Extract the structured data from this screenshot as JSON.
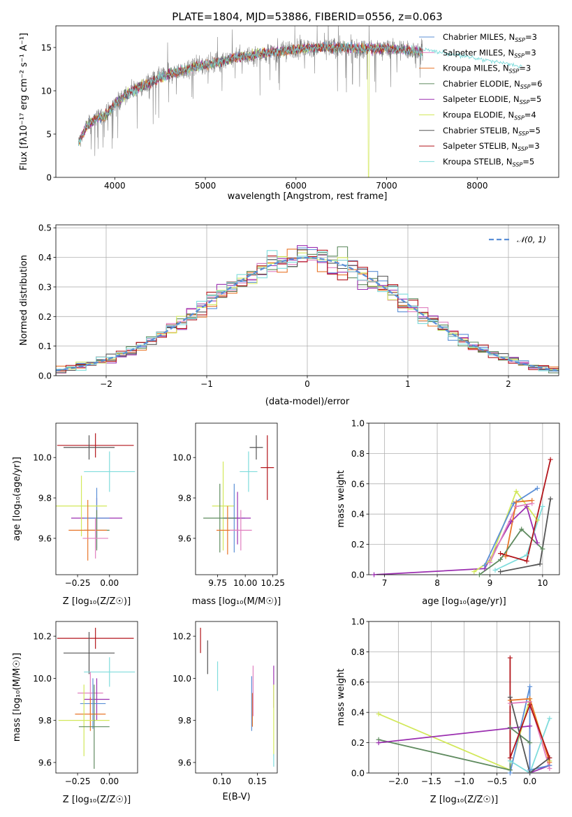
{
  "colors": {
    "Chabrier MILES": "#5B8FD6",
    "Salpeter MILES": "#E07FBF",
    "Kroupa MILES": "#E8762A",
    "Chabrier ELODIE": "#5E8A5E",
    "Salpeter ELODIE": "#9B2FB0",
    "Kroupa ELODIE": "#D2E85A",
    "Chabrier STELIB": "#555555",
    "Salpeter STELIB": "#B3151B",
    "Kroupa STELIB": "#7FDCDC"
  },
  "chart_data": [
    {
      "id": "spectrum",
      "type": "line",
      "title": "PLATE=1804, MJD=53886, FIBERID=0556, z=0.063",
      "xlabel": "wavelength [Angstrom, rest frame]",
      "ylabel": "Flux [fλ10⁻¹⁷ erg cm⁻² s⁻¹ A⁻¹]",
      "xlim": [
        3350,
        8900
      ],
      "ylim": [
        0,
        17.5
      ],
      "xticks": [
        4000,
        5000,
        6000,
        7000,
        8000
      ],
      "yticks": [
        0,
        5,
        10,
        15
      ],
      "legend_placement": "right",
      "legend": [
        {
          "label": "Chabrier MILES, N",
          "sub": "SSP",
          "tail": "=3",
          "color": "#5B8FD6"
        },
        {
          "label": "Salpeter MILES, N",
          "sub": "SSP",
          "tail": "=3",
          "color": "#E07FBF"
        },
        {
          "label": "Kroupa MILES, N",
          "sub": "SSP",
          "tail": "=3",
          "color": "#E8762A"
        },
        {
          "label": "Chabrier ELODIE, N",
          "sub": "SSP",
          "tail": "=6",
          "color": "#5E8A5E"
        },
        {
          "label": "Salpeter ELODIE, N",
          "sub": "SSP",
          "tail": "=5",
          "color": "#9B2FB0"
        },
        {
          "label": "Kroupa ELODIE, N",
          "sub": "SSP",
          "tail": "=4",
          "color": "#D2E85A"
        },
        {
          "label": "Chabrier STELIB, N",
          "sub": "SSP",
          "tail": "=5",
          "color": "#555555"
        },
        {
          "label": "Salpeter STELIB, N",
          "sub": "SSP",
          "tail": "=3",
          "color": "#B3151B"
        },
        {
          "label": "Kroupa STELIB, N",
          "sub": "SSP",
          "tail": "=5",
          "color": "#7FDCDC"
        }
      ],
      "spectrum_anchors": {
        "wavelength": [
          3600,
          3700,
          3800,
          3900,
          4000,
          4100,
          4200,
          4300,
          4400,
          4500,
          4700,
          4900,
          5100,
          5300,
          5500,
          5700,
          5900,
          6100,
          6300,
          6500,
          6700,
          6900,
          7100,
          7300,
          7400
        ],
        "flux": [
          4.0,
          6.0,
          6.8,
          7.2,
          8.5,
          9.3,
          10.0,
          10.5,
          11.0,
          11.5,
          12.2,
          12.8,
          13.2,
          13.8,
          14.1,
          14.4,
          14.7,
          14.9,
          15.0,
          15.0,
          14.9,
          14.9,
          14.8,
          14.6,
          14.5
        ]
      },
      "model_extension": {
        "wavelength": [
          7400,
          8500
        ],
        "flux": [
          14.8,
          12.8
        ]
      }
    },
    {
      "id": "residuals",
      "type": "line",
      "xlabel": "(data-model)/error",
      "ylabel": "Normed distribution",
      "xlim": [
        -2.5,
        2.5
      ],
      "ylim": [
        0,
        0.51
      ],
      "xticks": [
        -2,
        -1,
        0,
        1,
        2
      ],
      "yticks": [
        0.0,
        0.1,
        0.2,
        0.3,
        0.4,
        0.5
      ],
      "grid": true,
      "legend_placement": "top-right",
      "reference_label": "𝒩(0, 1)",
      "reference_color": "#5B8FD6",
      "bin_width": 0.1
    },
    {
      "id": "age_vs_Z",
      "type": "scatter",
      "xlabel": "Z [log₁₀(Z/Z☉)]",
      "ylabel": "age  [log₁₀(age/yr)]",
      "xlim": [
        -0.42,
        0.22
      ],
      "ylim": [
        9.42,
        10.17
      ],
      "xticks": [
        -0.25,
        0.0
      ],
      "yticks": [
        9.6,
        9.8,
        10.0
      ],
      "errorbars": [
        {
          "model": "Salpeter STELIB",
          "x": -0.11,
          "xerr": 0.3,
          "y": 10.06,
          "yerr": 0.06
        },
        {
          "model": "Chabrier STELIB",
          "x": -0.16,
          "xerr": 0.2,
          "y": 10.05,
          "yerr": 0.06
        },
        {
          "model": "Kroupa STELIB",
          "x": 0.0,
          "xerr": 0.2,
          "y": 9.93,
          "yerr": 0.1
        },
        {
          "model": "Salpeter ELODIE",
          "x": -0.1,
          "xerr": 0.2,
          "y": 9.7,
          "yerr": 0.1
        },
        {
          "model": "Chabrier MILES",
          "x": -0.1,
          "xerr": 0.1,
          "y": 9.7,
          "yerr": 0.15
        },
        {
          "model": "Kroupa ELODIE",
          "x": -0.22,
          "xerr": 0.2,
          "y": 9.76,
          "yerr": 0.15
        },
        {
          "model": "Chabrier ELODIE",
          "x": -0.1,
          "xerr": 0.1,
          "y": 9.64,
          "yerr": 0.1
        },
        {
          "model": "Kroupa MILES",
          "x": -0.17,
          "xerr": 0.15,
          "y": 9.64,
          "yerr": 0.15
        },
        {
          "model": "Salpeter MILES",
          "x": -0.11,
          "xerr": 0.1,
          "y": 9.6,
          "yerr": 0.1
        }
      ]
    },
    {
      "id": "age_vs_mass",
      "type": "scatter",
      "xlabel": "mass [log₁₀(M/M☉)]",
      "xlim": [
        9.55,
        10.29
      ],
      "ylim": [
        9.42,
        10.17
      ],
      "xticks": [
        9.75,
        10.0,
        10.25
      ],
      "yticks": [
        9.6,
        9.8,
        10.0
      ],
      "errorbars": [
        {
          "model": "Salpeter STELIB",
          "x": 10.2,
          "xerr": 0.06,
          "y": 9.95,
          "yerr": 0.16
        },
        {
          "model": "Chabrier STELIB",
          "x": 10.1,
          "xerr": 0.06,
          "y": 10.05,
          "yerr": 0.06
        },
        {
          "model": "Kroupa STELIB",
          "x": 10.03,
          "xerr": 0.08,
          "y": 9.93,
          "yerr": 0.1
        },
        {
          "model": "Kroupa ELODIE",
          "x": 9.8,
          "xerr": 0.1,
          "y": 9.76,
          "yerr": 0.22
        },
        {
          "model": "Chabrier MILES",
          "x": 9.9,
          "xerr": 0.1,
          "y": 9.7,
          "yerr": 0.17
        },
        {
          "model": "Salpeter ELODIE",
          "x": 9.93,
          "xerr": 0.12,
          "y": 9.7,
          "yerr": 0.13
        },
        {
          "model": "Chabrier ELODIE",
          "x": 9.77,
          "xerr": 0.15,
          "y": 9.7,
          "yerr": 0.17
        },
        {
          "model": "Kroupa MILES",
          "x": 9.84,
          "xerr": 0.1,
          "y": 9.64,
          "yerr": 0.12
        },
        {
          "model": "Salpeter MILES",
          "x": 9.96,
          "xerr": 0.1,
          "y": 9.64,
          "yerr": 0.1
        }
      ]
    },
    {
      "id": "weight_vs_age",
      "type": "line",
      "xlabel": "age  [log₁₀(age/yr)]",
      "ylabel": "mass weight",
      "xlim": [
        6.7,
        10.32
      ],
      "ylim": [
        0,
        1.0
      ],
      "xticks": [
        7,
        8,
        9,
        10
      ],
      "yticks": [
        0.0,
        0.2,
        0.4,
        0.6,
        0.8,
        1.0
      ],
      "grid": true,
      "series": [
        {
          "model": "Salpeter ELODIE",
          "x": [
            6.8,
            8.9,
            9.4,
            9.7,
            9.9
          ],
          "y": [
            0.0,
            0.04,
            0.35,
            0.45,
            0.21
          ]
        },
        {
          "model": "Kroupa ELODIE",
          "x": [
            8.7,
            9.0,
            9.5,
            9.9
          ],
          "y": [
            0.02,
            0.09,
            0.55,
            0.36
          ]
        },
        {
          "model": "Chabrier MILES",
          "x": [
            8.9,
            9.45,
            9.9
          ],
          "y": [
            0.06,
            0.47,
            0.57
          ]
        },
        {
          "model": "Salpeter MILES",
          "x": [
            9.0,
            9.5,
            9.8
          ],
          "y": [
            0.08,
            0.45,
            0.47
          ]
        },
        {
          "model": "Kroupa MILES",
          "x": [
            9.3,
            9.5,
            9.8
          ],
          "y": [
            0.12,
            0.48,
            0.49
          ]
        },
        {
          "model": "Chabrier ELODIE",
          "x": [
            8.8,
            9.2,
            9.6,
            10.0
          ],
          "y": [
            0.0,
            0.1,
            0.3,
            0.17
          ]
        },
        {
          "model": "Kroupa STELIB",
          "x": [
            9.1,
            9.7,
            10.0
          ],
          "y": [
            0.03,
            0.13,
            0.45
          ]
        },
        {
          "model": "Chabrier STELIB",
          "x": [
            9.2,
            9.95,
            10.15
          ],
          "y": [
            0.02,
            0.07,
            0.5
          ]
        },
        {
          "model": "Salpeter STELIB",
          "x": [
            9.2,
            9.7,
            10.15
          ],
          "y": [
            0.14,
            0.09,
            0.76
          ]
        }
      ]
    },
    {
      "id": "mass_vs_Z",
      "type": "scatter",
      "xlabel": "Z [log₁₀(Z/Z☉)]",
      "ylabel": "mass [log₁₀(M/M☉)]",
      "xlim": [
        -0.42,
        0.22
      ],
      "ylim": [
        9.55,
        10.27
      ],
      "xticks": [
        -0.25,
        0.0
      ],
      "yticks": [
        9.6,
        9.8,
        10.0,
        10.2
      ],
      "errorbars": [
        {
          "model": "Salpeter STELIB",
          "x": -0.11,
          "xerr": 0.3,
          "y": 10.19,
          "yerr": 0.05
        },
        {
          "model": "Chabrier STELIB",
          "x": -0.16,
          "xerr": 0.2,
          "y": 10.12,
          "yerr": 0.1
        },
        {
          "model": "Kroupa STELIB",
          "x": 0.0,
          "xerr": 0.2,
          "y": 10.03,
          "yerr": 0.07
        },
        {
          "model": "Salpeter MILES",
          "x": -0.15,
          "xerr": 0.1,
          "y": 9.93,
          "yerr": 0.1
        },
        {
          "model": "Salpeter ELODIE",
          "x": -0.1,
          "xerr": 0.1,
          "y": 9.9,
          "yerr": 0.1
        },
        {
          "model": "Chabrier MILES",
          "x": -0.13,
          "xerr": 0.1,
          "y": 9.88,
          "yerr": 0.12
        },
        {
          "model": "Kroupa MILES",
          "x": -0.15,
          "xerr": 0.12,
          "y": 9.83,
          "yerr": 0.08
        },
        {
          "model": "Kroupa ELODIE",
          "x": -0.2,
          "xerr": 0.2,
          "y": 9.8,
          "yerr": 0.17
        },
        {
          "model": "Chabrier ELODIE",
          "x": -0.12,
          "xerr": 0.12,
          "y": 9.77,
          "yerr": 0.2
        }
      ]
    },
    {
      "id": "mass_vs_EBV",
      "type": "scatter",
      "xlabel": "E(B-V)",
      "xlim": [
        0.063,
        0.178
      ],
      "ylim": [
        9.55,
        10.27
      ],
      "xticks": [
        0.1,
        0.15
      ],
      "yticks": [
        9.6,
        9.8,
        10.0,
        10.2
      ],
      "errorbars": [
        {
          "model": "Salpeter STELIB",
          "x": 0.07,
          "y": 10.18,
          "yerr": 0.06
        },
        {
          "model": "Chabrier STELIB",
          "x": 0.08,
          "y": 10.1,
          "yerr": 0.08
        },
        {
          "model": "Kroupa STELIB",
          "x": 0.094,
          "y": 10.01,
          "yerr": 0.07
        },
        {
          "model": "Chabrier MILES",
          "x": 0.142,
          "y": 9.88,
          "yerr": 0.13
        },
        {
          "model": "Kroupa MILES",
          "x": 0.143,
          "y": 9.85,
          "yerr": 0.08
        },
        {
          "model": "Salpeter MILES",
          "x": 0.144,
          "y": 9.94,
          "yerr": 0.12
        },
        {
          "model": "Salpeter ELODIE",
          "x": 0.173,
          "y": 9.96,
          "yerr": 0.1
        },
        {
          "model": "Kroupa ELODIE",
          "x": 0.173,
          "y": 9.8,
          "yerr": 0.17
        },
        {
          "model": "Kroupa STELIB",
          "x": 0.173,
          "y": 9.61,
          "yerr": 0.03
        }
      ]
    },
    {
      "id": "weight_vs_Z",
      "type": "line",
      "xlabel": "Z [log₁₀(Z/Z☉)]",
      "ylabel": "mass weight",
      "xlim": [
        -2.45,
        0.45
      ],
      "ylim": [
        0,
        1.0
      ],
      "xticks": [
        -2.0,
        -1.5,
        -1.0,
        -0.5,
        0.0
      ],
      "yticks": [
        0.0,
        0.2,
        0.4,
        0.6,
        0.8,
        1.0
      ],
      "grid": true,
      "series": [
        {
          "model": "Kroupa ELODIE",
          "x": [
            -2.3,
            -0.3,
            0.0,
            0.3
          ],
          "y": [
            0.39,
            0.02,
            0.49,
            0.08
          ]
        },
        {
          "model": "Chabrier ELODIE",
          "x": [
            -2.3,
            -0.3,
            -0.3,
            0.0
          ],
          "y": [
            0.22,
            0.02,
            0.3,
            0.2
          ]
        },
        {
          "model": "Salpeter ELODIE",
          "x": [
            -2.3,
            0.0,
            0.0,
            0.3
          ],
          "y": [
            0.2,
            0.31,
            0.0,
            0.05
          ]
        },
        {
          "model": "Chabrier MILES",
          "x": [
            -0.3,
            0.0,
            0.0,
            0.3
          ],
          "y": [
            0.0,
            0.57,
            0.02,
            0.05
          ]
        },
        {
          "model": "Salpeter MILES",
          "x": [
            -0.3,
            0.0,
            0.3
          ],
          "y": [
            0.46,
            0.47,
            0.03
          ]
        },
        {
          "model": "Kroupa MILES",
          "x": [
            -0.3,
            0.0,
            0.3
          ],
          "y": [
            0.48,
            0.49,
            0.07
          ]
        },
        {
          "model": "Kroupa STELIB",
          "x": [
            -0.3,
            0.0,
            0.3
          ],
          "y": [
            0.08,
            0.0,
            0.36
          ]
        },
        {
          "model": "Chabrier STELIB",
          "x": [
            -0.3,
            0.0,
            0.3
          ],
          "y": [
            0.5,
            0.0,
            0.1
          ]
        },
        {
          "model": "Salpeter STELIB",
          "x": [
            -0.3,
            -0.3,
            0.0,
            0.3
          ],
          "y": [
            0.76,
            0.1,
            0.45,
            0.1
          ]
        }
      ]
    }
  ]
}
